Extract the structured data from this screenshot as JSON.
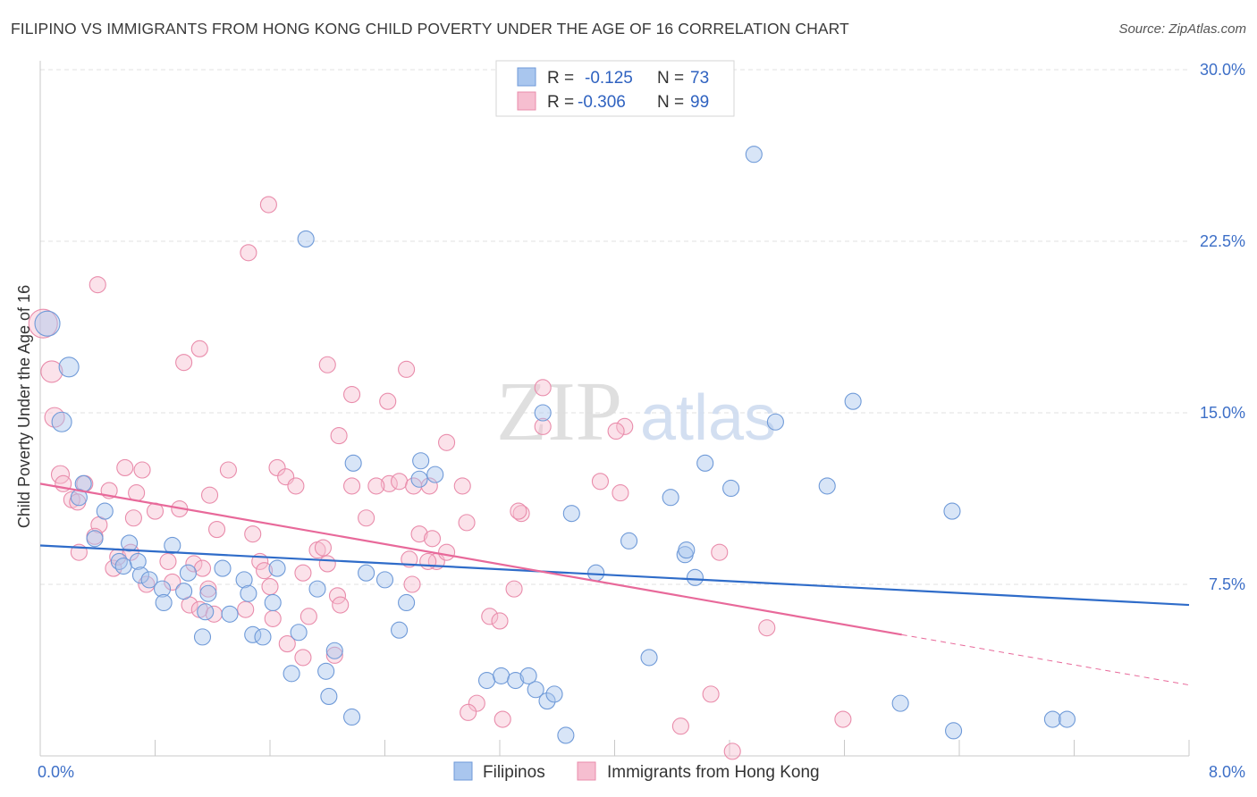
{
  "title": "FILIPINO VS IMMIGRANTS FROM HONG KONG CHILD POVERTY UNDER THE AGE OF 16 CORRELATION CHART",
  "source": "Source: ZipAtlas.com",
  "watermark": {
    "zip": "ZIP",
    "atlas": "atlas"
  },
  "colors": {
    "filipinos": "#a9c6ee",
    "filipinos_edge": "#6f9ad8",
    "filipinos_line": "#2f6cc9",
    "hongkong": "#f6bed0",
    "hongkong_edge": "#e98cab",
    "hongkong_line": "#e8699a"
  },
  "stats_legend": [
    {
      "r_label": "R =",
      "r_value": "-0.125",
      "n_label": "N =",
      "n_value": "73"
    },
    {
      "r_label": "R =",
      "r_value": "-0.306",
      "n_label": "N =",
      "n_value": "99"
    }
  ],
  "chart_data": {
    "type": "scatter",
    "title": "FILIPINO VS IMMIGRANTS FROM HONG KONG CHILD POVERTY UNDER THE AGE OF 16 CORRELATION CHART",
    "xlabel": "",
    "ylabel": "Child Poverty Under the Age of 16",
    "xlim": [
      0,
      8
    ],
    "ylim": [
      0,
      30
    ],
    "x_tick_labels": [
      "0.0%",
      "8.0%"
    ],
    "y_ticks": [
      7.5,
      15,
      22.5,
      30
    ],
    "y_tick_labels": [
      "7.5%",
      "15.0%",
      "22.5%",
      "30.0%"
    ],
    "grid": true,
    "legend_position": "top-center",
    "series": [
      {
        "name": "Filipinos",
        "trend": {
          "x0": 0,
          "y0": 9.2,
          "x1": 8,
          "y1": 6.6
        },
        "points": [
          [
            0.05,
            18.9,
            14
          ],
          [
            0.2,
            17.0,
            11
          ],
          [
            0.15,
            14.6,
            11
          ],
          [
            0.3,
            11.9,
            9
          ],
          [
            0.27,
            11.3,
            9
          ],
          [
            0.45,
            10.7,
            9
          ],
          [
            0.38,
            9.5,
            9
          ],
          [
            0.62,
            9.3,
            9
          ],
          [
            0.92,
            9.2,
            9
          ],
          [
            0.68,
            8.5,
            9
          ],
          [
            0.55,
            8.5,
            9
          ],
          [
            0.58,
            8.3,
            9
          ],
          [
            0.7,
            7.9,
            9
          ],
          [
            0.76,
            7.7,
            9
          ],
          [
            1.03,
            8.0,
            9
          ],
          [
            1.27,
            8.2,
            9
          ],
          [
            1.65,
            8.2,
            9
          ],
          [
            0.85,
            7.3,
            9
          ],
          [
            1.0,
            7.2,
            9
          ],
          [
            1.17,
            7.1,
            9
          ],
          [
            1.42,
            7.7,
            9
          ],
          [
            1.45,
            7.1,
            9
          ],
          [
            1.93,
            7.3,
            9
          ],
          [
            2.27,
            8.0,
            9
          ],
          [
            2.4,
            7.7,
            9
          ],
          [
            0.86,
            6.7,
            9
          ],
          [
            1.15,
            6.3,
            9
          ],
          [
            1.32,
            6.2,
            9
          ],
          [
            1.62,
            6.7,
            9
          ],
          [
            1.13,
            5.2,
            9
          ],
          [
            1.48,
            5.3,
            9
          ],
          [
            1.55,
            5.2,
            9
          ],
          [
            1.8,
            5.4,
            9
          ],
          [
            2.5,
            5.5,
            9
          ],
          [
            2.05,
            4.6,
            9
          ],
          [
            1.75,
            3.6,
            9
          ],
          [
            1.99,
            3.7,
            9
          ],
          [
            2.01,
            2.6,
            9
          ],
          [
            2.17,
            1.7,
            9
          ],
          [
            2.55,
            6.7,
            9
          ],
          [
            2.65,
            12.9,
            9
          ],
          [
            2.75,
            12.3,
            9
          ],
          [
            2.64,
            12.1,
            9
          ],
          [
            2.18,
            12.8,
            9
          ],
          [
            1.85,
            22.6,
            9
          ],
          [
            3.5,
            15.0,
            9
          ],
          [
            3.11,
            3.3,
            9
          ],
          [
            3.21,
            3.5,
            9
          ],
          [
            3.31,
            3.3,
            9
          ],
          [
            3.4,
            3.5,
            9
          ],
          [
            3.45,
            2.9,
            9
          ],
          [
            3.53,
            2.4,
            9
          ],
          [
            3.58,
            2.7,
            9
          ],
          [
            3.66,
            0.9,
            9
          ],
          [
            3.7,
            10.6,
            9
          ],
          [
            3.87,
            8.0,
            9
          ],
          [
            4.1,
            9.4,
            9
          ],
          [
            4.39,
            11.3,
            9
          ],
          [
            4.63,
            12.8,
            9
          ],
          [
            4.24,
            4.3,
            9
          ],
          [
            4.49,
            8.8,
            9
          ],
          [
            4.5,
            9.0,
            9
          ],
          [
            4.56,
            7.8,
            9
          ],
          [
            4.81,
            11.7,
            9
          ],
          [
            4.97,
            26.3,
            9
          ],
          [
            5.12,
            14.6,
            9
          ],
          [
            5.48,
            11.8,
            9
          ],
          [
            5.66,
            15.5,
            9
          ],
          [
            5.99,
            2.3,
            9
          ],
          [
            6.35,
            10.7,
            9
          ],
          [
            6.36,
            1.1,
            9
          ],
          [
            7.05,
            1.6,
            9
          ],
          [
            7.15,
            1.6,
            9
          ]
        ]
      },
      {
        "name": "Immigrants from Hong Kong",
        "trend": {
          "x0": 0,
          "y0": 11.9,
          "x1": 6.0,
          "y1": 5.3
        },
        "trend_extension": {
          "x0": 6.0,
          "y0": 5.3,
          "x1": 8,
          "y1": 3.1
        },
        "points": [
          [
            0.02,
            18.9,
            16
          ],
          [
            0.08,
            16.8,
            12
          ],
          [
            0.1,
            14.8,
            11
          ],
          [
            0.14,
            12.3,
            10
          ],
          [
            0.16,
            11.9,
            9
          ],
          [
            0.22,
            11.2,
            9
          ],
          [
            0.26,
            11.1,
            9
          ],
          [
            0.31,
            11.9,
            9
          ],
          [
            0.41,
            10.1,
            9
          ],
          [
            0.48,
            11.6,
            9
          ],
          [
            0.59,
            12.6,
            9
          ],
          [
            0.67,
            11.5,
            9
          ],
          [
            0.71,
            12.5,
            9
          ],
          [
            0.8,
            10.7,
            9
          ],
          [
            0.65,
            10.4,
            9
          ],
          [
            0.38,
            9.6,
            9
          ],
          [
            0.27,
            8.9,
            9
          ],
          [
            0.51,
            8.2,
            9
          ],
          [
            0.54,
            8.7,
            9
          ],
          [
            0.63,
            8.9,
            9
          ],
          [
            0.89,
            8.5,
            9
          ],
          [
            0.97,
            10.8,
            9
          ],
          [
            1.07,
            8.4,
            9
          ],
          [
            1.13,
            8.2,
            9
          ],
          [
            1.23,
            9.9,
            9
          ],
          [
            1.31,
            12.5,
            9
          ],
          [
            1.18,
            11.4,
            9
          ],
          [
            0.92,
            7.6,
            9
          ],
          [
            0.74,
            7.5,
            9
          ],
          [
            1.17,
            7.3,
            9
          ],
          [
            1.04,
            6.6,
            9
          ],
          [
            1.11,
            6.4,
            9
          ],
          [
            1.21,
            6.2,
            9
          ],
          [
            1.43,
            6.4,
            9
          ],
          [
            1.48,
            9.7,
            9
          ],
          [
            1.53,
            8.5,
            9
          ],
          [
            1.56,
            8.1,
            9
          ],
          [
            1.6,
            7.4,
            9
          ],
          [
            1.65,
            12.6,
            9
          ],
          [
            1.71,
            12.2,
            9
          ],
          [
            1.78,
            11.8,
            9
          ],
          [
            1.83,
            8.0,
            9
          ],
          [
            1.87,
            6.1,
            9
          ],
          [
            1.62,
            6.0,
            9
          ],
          [
            1.72,
            4.9,
            9
          ],
          [
            1.83,
            4.3,
            9
          ],
          [
            1.93,
            9.0,
            9
          ],
          [
            1.97,
            9.1,
            9
          ],
          [
            2.0,
            8.4,
            9
          ],
          [
            2.07,
            7.0,
            9
          ],
          [
            2.09,
            6.6,
            9
          ],
          [
            2.05,
            4.4,
            9
          ],
          [
            2.17,
            11.8,
            9
          ],
          [
            2.27,
            10.4,
            9
          ],
          [
            2.43,
            11.9,
            9
          ],
          [
            2.5,
            12.0,
            9
          ],
          [
            2.57,
            8.6,
            9
          ],
          [
            2.64,
            9.7,
            9
          ],
          [
            2.71,
            11.8,
            9
          ],
          [
            2.73,
            9.5,
            9
          ],
          [
            2.76,
            8.5,
            9
          ],
          [
            2.83,
            8.9,
            9
          ],
          [
            2.59,
            7.5,
            9
          ],
          [
            2.7,
            8.5,
            9
          ],
          [
            2.83,
            13.7,
            9
          ],
          [
            2.94,
            11.8,
            9
          ],
          [
            2.97,
            10.2,
            9
          ],
          [
            3.04,
            2.3,
            9
          ],
          [
            2.98,
            1.9,
            9
          ],
          [
            3.13,
            6.1,
            9
          ],
          [
            3.2,
            5.9,
            9
          ],
          [
            3.3,
            7.3,
            9
          ],
          [
            3.35,
            10.6,
            9
          ],
          [
            3.5,
            14.4,
            9
          ],
          [
            3.5,
            16.1,
            9
          ],
          [
            3.22,
            1.6,
            9
          ],
          [
            2.6,
            11.8,
            9
          ],
          [
            2.55,
            16.9,
            9
          ],
          [
            1.59,
            24.1,
            9
          ],
          [
            1.45,
            22.0,
            9
          ],
          [
            1.11,
            17.8,
            9
          ],
          [
            1.0,
            17.2,
            9
          ],
          [
            0.4,
            20.6,
            9
          ],
          [
            2.0,
            17.1,
            9
          ],
          [
            2.17,
            15.8,
            9
          ],
          [
            2.42,
            15.5,
            9
          ],
          [
            2.08,
            14.0,
            9
          ],
          [
            2.34,
            11.8,
            9
          ],
          [
            3.33,
            10.7,
            9
          ],
          [
            3.9,
            12.0,
            9
          ],
          [
            4.04,
            11.5,
            9
          ],
          [
            4.07,
            14.4,
            9
          ],
          [
            4.01,
            14.2,
            9
          ],
          [
            4.46,
            1.3,
            9
          ],
          [
            4.67,
            2.7,
            9
          ],
          [
            4.82,
            0.2,
            9
          ],
          [
            5.06,
            5.6,
            9
          ],
          [
            5.59,
            1.6,
            9
          ],
          [
            4.73,
            8.9,
            9
          ]
        ]
      }
    ]
  },
  "bottom_legend": [
    {
      "label": "Filipinos"
    },
    {
      "label": "Immigrants from Hong Kong"
    }
  ]
}
